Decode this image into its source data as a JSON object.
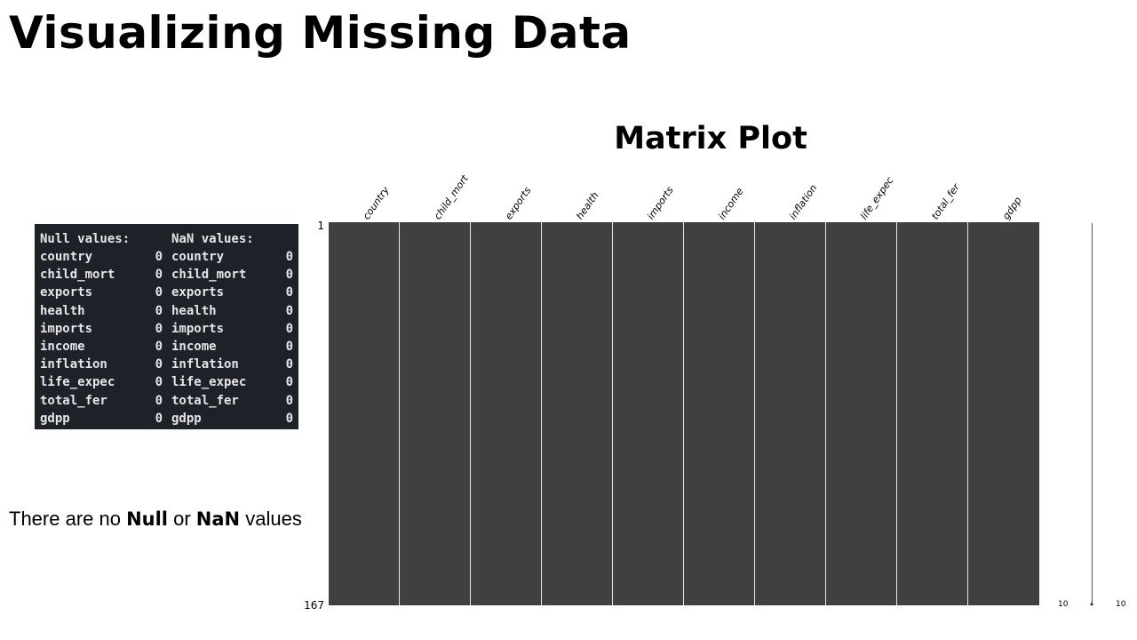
{
  "slide": {
    "title": "Visualizing Missing Data"
  },
  "console": {
    "null_header": "Null values:",
    "nan_header": "NaN values:",
    "null_rows": [
      {
        "name": "country",
        "count": "0"
      },
      {
        "name": "child_mort",
        "count": "0"
      },
      {
        "name": "exports",
        "count": "0"
      },
      {
        "name": "health",
        "count": "0"
      },
      {
        "name": "imports",
        "count": "0"
      },
      {
        "name": "income",
        "count": "0"
      },
      {
        "name": "inflation",
        "count": "0"
      },
      {
        "name": "life_expec",
        "count": "0"
      },
      {
        "name": "total_fer",
        "count": "0"
      },
      {
        "name": "gdpp",
        "count": "0"
      }
    ],
    "nan_rows": [
      {
        "name": "country",
        "count": "0"
      },
      {
        "name": "child_mort",
        "count": "0"
      },
      {
        "name": "exports",
        "count": "0"
      },
      {
        "name": "health",
        "count": "0"
      },
      {
        "name": "imports",
        "count": "0"
      },
      {
        "name": "income",
        "count": "0"
      },
      {
        "name": "inflation",
        "count": "0"
      },
      {
        "name": "life_expec",
        "count": "0"
      },
      {
        "name": "total_fer",
        "count": "0"
      },
      {
        "name": "gdpp",
        "count": "0"
      }
    ],
    "background_color": "#1f2128",
    "text_color": "#e6e6e6"
  },
  "caption": {
    "prefix": "There are no ",
    "null_word": "Null",
    "middle": " or ",
    "nan_word": "NaN",
    "suffix": " values"
  },
  "matrix_plot": {
    "title": "Matrix Plot",
    "columns": [
      "country",
      "child_mort",
      "exports",
      "health",
      "imports",
      "income",
      "inflation",
      "life_expec",
      "total_fer",
      "gdpp"
    ],
    "row_first_label": "1",
    "row_last_label": "167",
    "sparkline_min_label": "10",
    "sparkline_max_label": "10",
    "filled_color": "#404040",
    "separator_color": "#e6e6e6"
  }
}
